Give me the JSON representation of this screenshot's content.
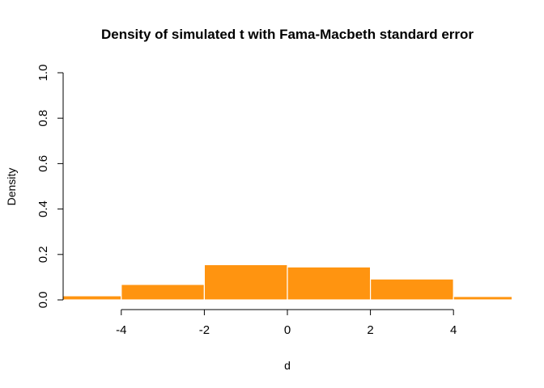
{
  "chart_data": {
    "type": "bar",
    "title": "Density of simulated t with Fama-Macbeth standard error",
    "xlabel": "d",
    "ylabel": "Density",
    "xlim": [
      -5.4,
      5.4
    ],
    "ylim": [
      0,
      1.0
    ],
    "x_ticks": [
      -4,
      -2,
      0,
      2,
      4
    ],
    "y_ticks": [
      0.0,
      0.2,
      0.4,
      0.6,
      0.8,
      1.0
    ],
    "x_tick_labels": [
      "-4",
      "-2",
      "0",
      "2",
      "4"
    ],
    "y_tick_labels": [
      "0.0",
      "0.2",
      "0.4",
      "0.6",
      "0.8",
      "1.0"
    ],
    "bar_color": "#FF9410",
    "bar_border_color": "#FFFFFF",
    "bins": [
      {
        "x0": -6,
        "x1": -4,
        "density": 0.018
      },
      {
        "x0": -4,
        "x1": -2,
        "density": 0.068
      },
      {
        "x0": -2,
        "x1": 0,
        "density": 0.155
      },
      {
        "x0": 0,
        "x1": 2,
        "density": 0.145
      },
      {
        "x0": 2,
        "x1": 4,
        "density": 0.092
      },
      {
        "x0": 4,
        "x1": 6,
        "density": 0.015
      }
    ],
    "grid": false,
    "legend": "none"
  }
}
